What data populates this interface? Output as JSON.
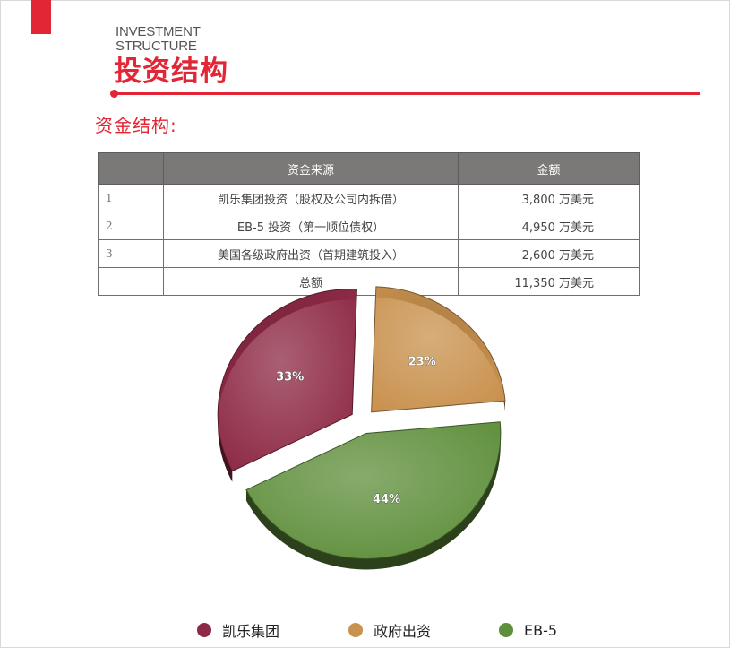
{
  "header": {
    "title_en_line1": "INVESTMENT",
    "title_en_line2": "STRUCTURE",
    "title_cn": "投资结构",
    "accent_color": "#e32636"
  },
  "section": {
    "title": "资金结构:"
  },
  "table": {
    "columns": [
      "",
      "资金来源",
      "金额"
    ],
    "rows": [
      {
        "index": "1",
        "source": "凯乐集团投资（股权及公司内拆借）",
        "amount": "3,800 万美元"
      },
      {
        "index": "2",
        "source": "EB-5 投资（第一顺位债权）",
        "amount": "4,950 万美元"
      },
      {
        "index": "3",
        "source": "美国各级政府出资（首期建筑投入）",
        "amount": "2,600 万美元"
      },
      {
        "index": "",
        "source": "总额",
        "amount": "11,350 万美元"
      }
    ]
  },
  "chart_data": {
    "type": "pie",
    "slices": [
      {
        "name": "凯乐集团",
        "value": 33,
        "label": "33%",
        "color": "#8e2a45"
      },
      {
        "name": "政府出资",
        "value": 23,
        "label": "23%",
        "color": "#c9924f"
      },
      {
        "name": "EB-5",
        "value": 44,
        "label": "44%",
        "color": "#5f8f3c"
      }
    ],
    "legend_position": "bottom"
  }
}
